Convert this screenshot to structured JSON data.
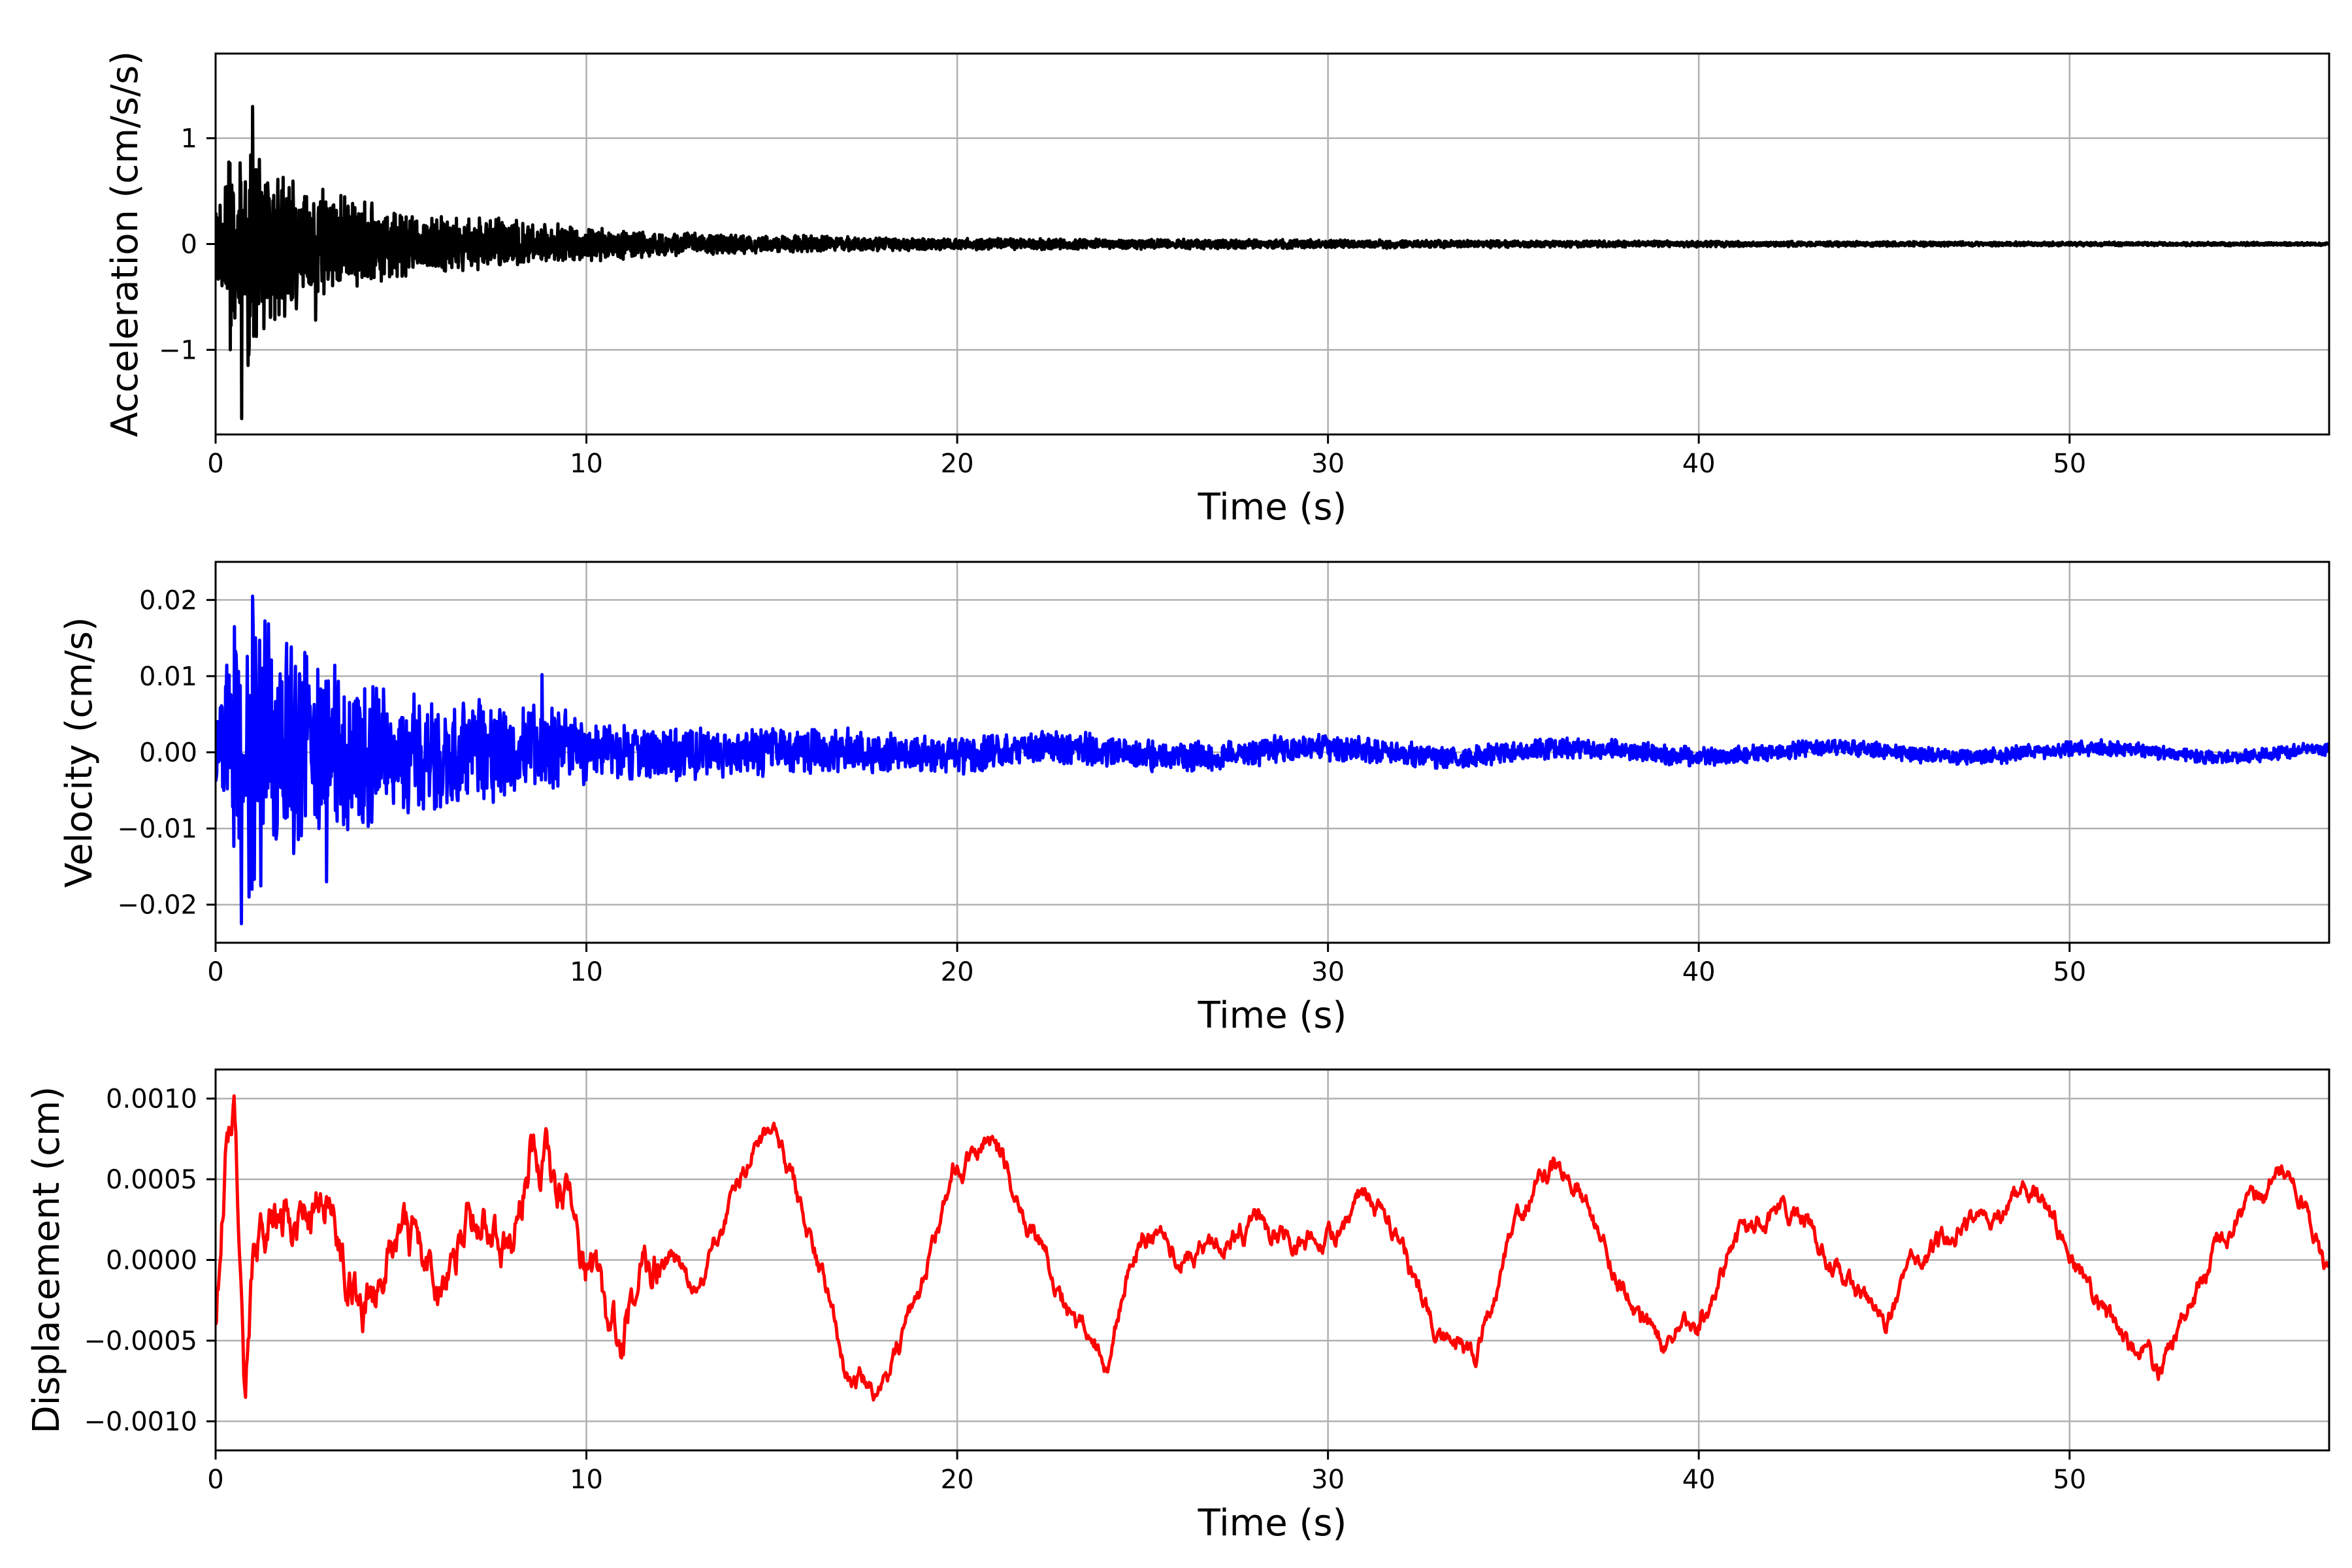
{
  "chart_data": [
    {
      "type": "line",
      "xlabel": "Time (s)",
      "ylabel": "Acceleration (cm/s/s)",
      "xlim": [
        0,
        57
      ],
      "ylim": [
        -1.8,
        1.8
      ],
      "xticks": [
        0,
        10,
        20,
        30,
        40,
        50
      ],
      "xtick_labels": [
        "0",
        "10",
        "20",
        "30",
        "40",
        "50"
      ],
      "yticks": [
        -1,
        0,
        1
      ],
      "ytick_labels": [
        "−1",
        "0",
        "1"
      ],
      "grid": true,
      "color": "#000000",
      "series": [
        {
          "x": [
            0,
            0.2,
            0.4,
            0.6,
            0.8,
            1.0,
            1.2,
            1.4,
            1.6,
            1.8,
            2.0,
            2.5,
            3.0,
            3.5,
            4.0,
            4.5,
            5.0,
            6.0,
            7.0,
            8.0,
            9.0,
            10.0,
            11.0,
            12.0,
            14.0,
            16.0,
            18.0,
            20.0,
            25.0,
            30.0,
            35.0,
            40.0,
            45.0,
            50.0,
            55.0,
            57.0
          ],
          "envelope": [
            0.4,
            0.6,
            1.05,
            0.9,
            1.2,
            1.3,
            1.0,
            0.95,
            0.85,
            0.8,
            0.75,
            0.62,
            0.55,
            0.5,
            0.45,
            0.42,
            0.38,
            0.3,
            0.28,
            0.24,
            0.2,
            0.17,
            0.15,
            0.13,
            0.1,
            0.085,
            0.07,
            0.06,
            0.05,
            0.045,
            0.035,
            0.03,
            0.025,
            0.02,
            0.018,
            0.015
          ],
          "peaks": [
            [
              0.7,
              -1.65
            ],
            [
              1.0,
              1.3
            ],
            [
              0.9,
              -1.05
            ],
            [
              0.4,
              -1.0
            ],
            [
              1.3,
              -0.8
            ],
            [
              2.7,
              -0.72
            ]
          ]
        }
      ]
    },
    {
      "type": "line",
      "xlabel": "Time (s)",
      "ylabel": "Velocity (cm/s)",
      "xlim": [
        0,
        57
      ],
      "ylim": [
        -0.025,
        0.025
      ],
      "xticks": [
        0,
        10,
        20,
        30,
        40,
        50
      ],
      "xtick_labels": [
        "0",
        "10",
        "20",
        "30",
        "40",
        "50"
      ],
      "yticks": [
        -0.02,
        -0.01,
        0.0,
        0.01,
        0.02
      ],
      "ytick_labels": [
        "−0.02",
        "−0.01",
        "0.00",
        "0.01",
        "0.02"
      ],
      "grid": true,
      "color": "#0000ff",
      "series": [
        {
          "x": [
            0,
            0.5,
            1.0,
            1.5,
            2.0,
            3.0,
            4.0,
            5.0,
            6.0,
            8.0,
            10.0,
            12.0,
            15.0,
            18.0,
            20.0,
            25.0,
            30.0,
            35.0,
            40.0,
            45.0,
            50.0,
            55.0,
            57.0
          ],
          "envelope": [
            0.01,
            0.016,
            0.02,
            0.017,
            0.015,
            0.013,
            0.011,
            0.009,
            0.008,
            0.007,
            0.005,
            0.004,
            0.0035,
            0.003,
            0.0028,
            0.0022,
            0.002,
            0.0016,
            0.0014,
            0.0012,
            0.0011,
            0.001,
            0.001
          ],
          "peaks": [
            [
              0.7,
              -0.0225
            ],
            [
              1.0,
              0.0205
            ],
            [
              0.5,
              0.0165
            ],
            [
              3.0,
              -0.017
            ],
            [
              0.9,
              -0.019
            ],
            [
              8.8,
              0.0102
            ]
          ]
        }
      ]
    },
    {
      "type": "line",
      "xlabel": "Time (s)",
      "ylabel": "Displacement (cm)",
      "xlim": [
        0,
        57
      ],
      "ylim": [
        -0.00118,
        0.00118
      ],
      "xticks": [
        0,
        10,
        20,
        30,
        40,
        50
      ],
      "xtick_labels": [
        "0",
        "10",
        "20",
        "30",
        "40",
        "50"
      ],
      "yticks": [
        -0.001,
        -0.0005,
        0.0,
        0.0005,
        0.001
      ],
      "ytick_labels": [
        "−0.0010",
        "−0.0005",
        "0.0000",
        "0.0005",
        "0.0010"
      ],
      "grid": true,
      "color": "#ff0000",
      "series": [
        {
          "x": [
            0,
            0.3,
            0.5,
            0.8,
            1.0,
            1.5,
            2.0,
            3.0,
            4.0,
            5.0,
            6.0,
            7.0,
            8.0,
            8.5,
            9.0,
            10.0,
            10.8,
            12.0,
            13.0,
            14.5,
            15.0,
            16.0,
            17.0,
            18.0,
            19.0,
            20.0,
            21.0,
            22.0,
            23.0,
            24.0,
            25.0,
            26.0,
            27.0,
            28.0,
            29.0,
            30.0,
            31.0,
            32.0,
            33.0,
            34.0,
            35.0,
            36.0,
            37.0,
            38.0,
            39.0,
            40.0,
            41.0,
            42.0,
            43.0,
            44.0,
            45.0,
            46.0,
            47.0,
            48.0,
            49.0,
            50.0,
            51.0,
            52.0,
            52.5,
            53.0,
            54.0,
            55.0,
            56.0,
            57.0
          ],
          "y": [
            -0.00035,
            0.0008,
            0.00105,
            -0.0009,
            0.0,
            0.0002,
            0.0003,
            0.0004,
            -0.0003,
            0.0003,
            -0.0002,
            0.0003,
            0.0001,
            0.0007,
            0.0006,
            0.0,
            -0.0005,
            0.0001,
            -0.0002,
            0.0007,
            0.0008,
            0.0002,
            -0.0007,
            -0.0008,
            -0.0002,
            0.0006,
            0.0007,
            0.0002,
            -0.0003,
            -0.0006,
            0.0002,
            0.0,
            0.0001,
            0.0002,
            0.0001,
            0.0001,
            0.0004,
            0.0001,
            -0.0005,
            -0.0006,
            0.0002,
            0.0006,
            0.0004,
            -0.0002,
            -0.0005,
            -0.0004,
            0.0001,
            0.0003,
            0.0002,
            -0.0001,
            -0.0004,
            0.0,
            0.0002,
            0.0003,
            0.0004,
            0.0001,
            -0.0004,
            -0.0006,
            -0.0007,
            -0.0004,
            0.0001,
            0.0004,
            0.0006,
            -0.0001
          ]
        }
      ]
    }
  ]
}
